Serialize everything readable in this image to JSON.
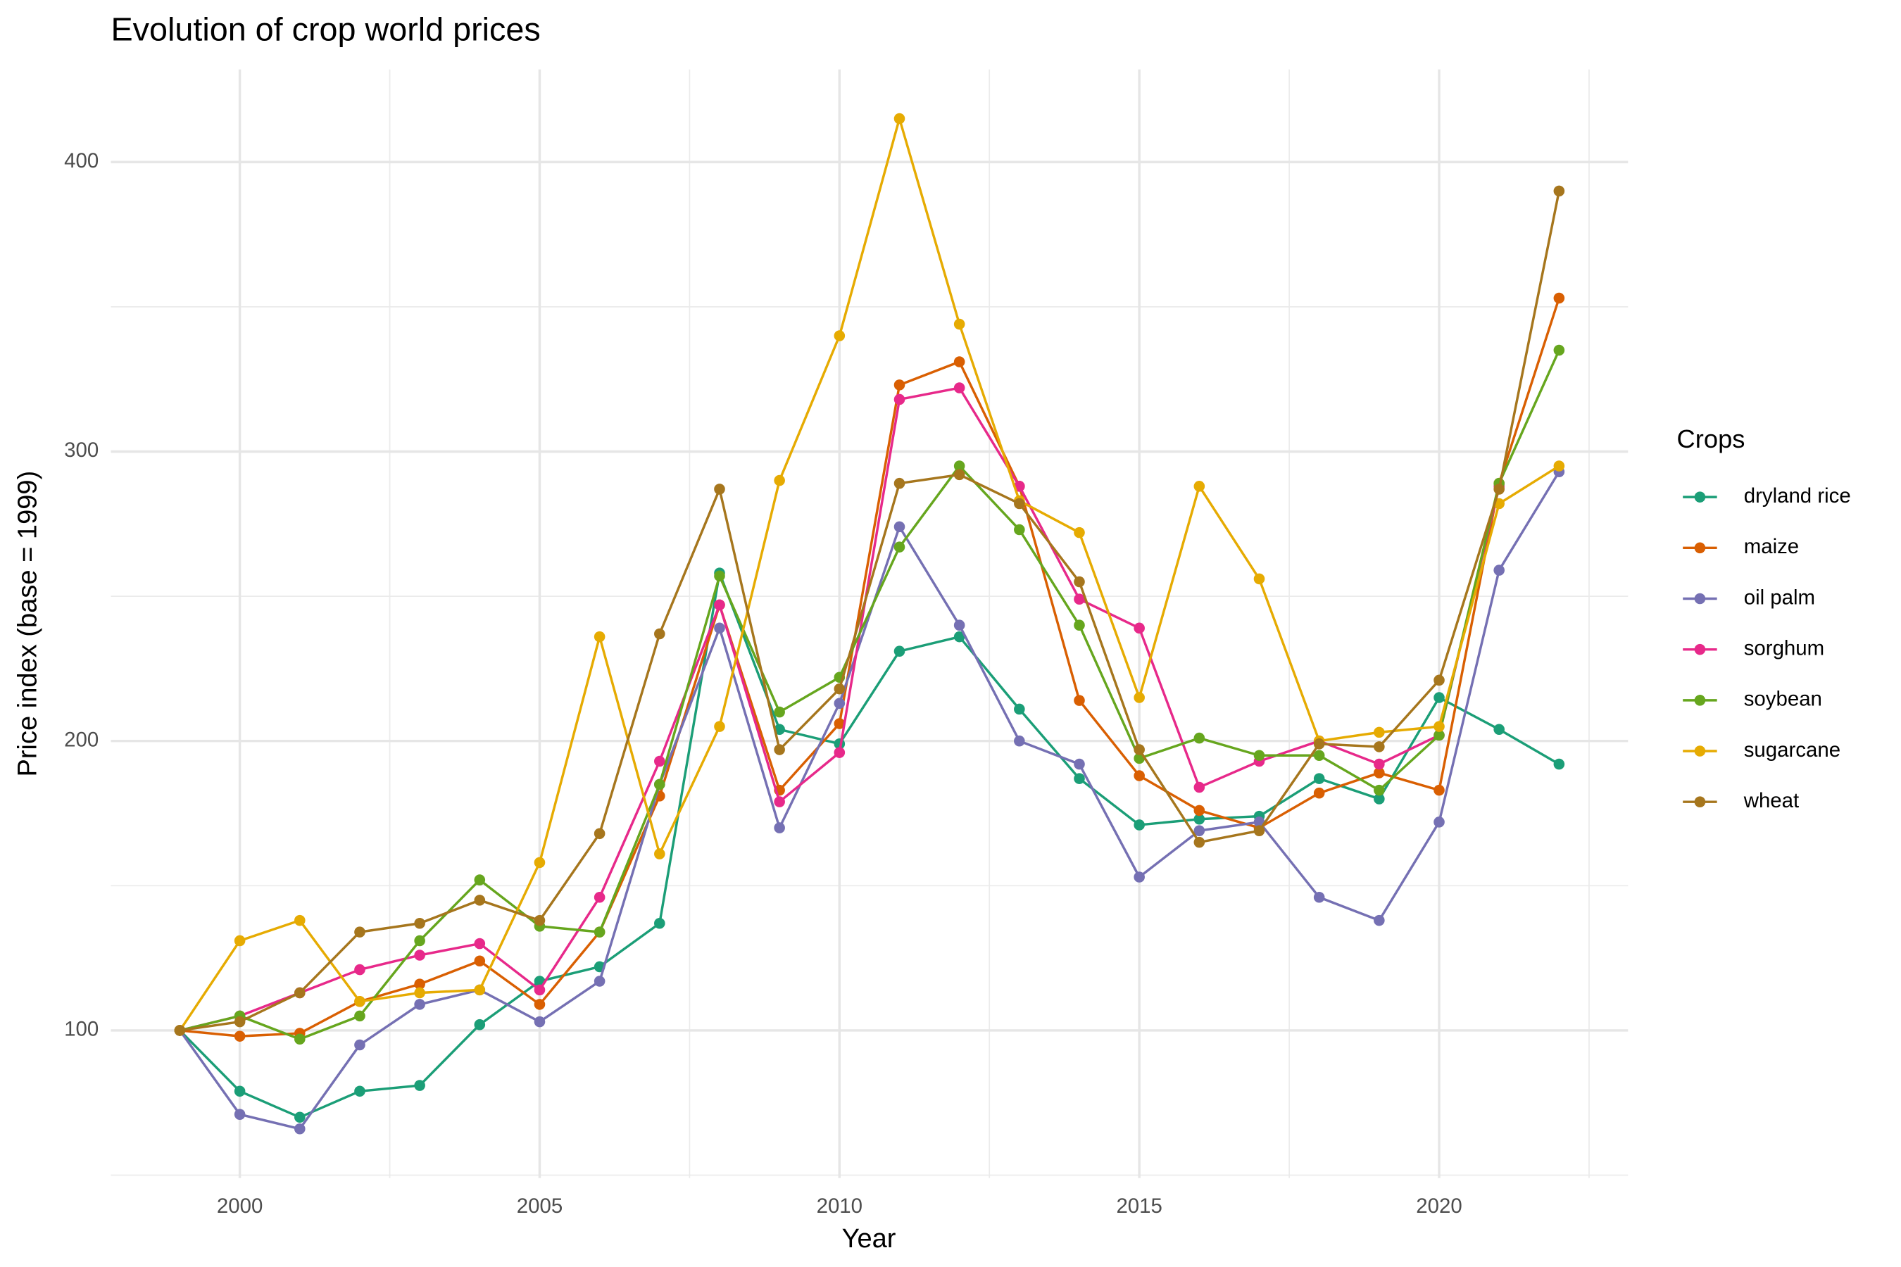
{
  "chart_data": {
    "type": "line",
    "title": "Evolution of crop world prices",
    "x_label": "Year",
    "y_label": "Price index (base = 1999)",
    "legend_title": "Crops",
    "legend_position": "right",
    "grid": true,
    "x": [
      1999,
      2000,
      2001,
      2002,
      2003,
      2004,
      2005,
      2006,
      2007,
      2008,
      2009,
      2010,
      2011,
      2012,
      2013,
      2014,
      2015,
      2016,
      2017,
      2018,
      2019,
      2020,
      2021,
      2022
    ],
    "xlim": [
      1997.85,
      2023.15
    ],
    "xticks": [
      2000,
      2005,
      2010,
      2015,
      2020
    ],
    "ylim": [
      49,
      432
    ],
    "yticks": [
      100,
      200,
      300,
      400
    ],
    "series": [
      {
        "name": "dryland rice",
        "color": "#1b9e77",
        "values": [
          100,
          79,
          70,
          79,
          81,
          102,
          117,
          122,
          137,
          258,
          204,
          199,
          231,
          236,
          211,
          187,
          171,
          173,
          174,
          187,
          180,
          215,
          204,
          192
        ]
      },
      {
        "name": "maize",
        "color": "#d95f02",
        "values": [
          100,
          98,
          99,
          110,
          116,
          124,
          109,
          134,
          181,
          247,
          183,
          206,
          323,
          331,
          288,
          214,
          188,
          176,
          170,
          182,
          189,
          183,
          289,
          353
        ]
      },
      {
        "name": "oil palm",
        "color": "#7570b3",
        "values": [
          100,
          71,
          66,
          95,
          109,
          114,
          103,
          117,
          185,
          239,
          170,
          213,
          274,
          240,
          200,
          192,
          153,
          169,
          172,
          146,
          138,
          172,
          259,
          293
        ]
      },
      {
        "name": "sorghum",
        "color": "#e7298a",
        "values": [
          100,
          105,
          113,
          121,
          126,
          130,
          114,
          146,
          193,
          247,
          179,
          196,
          318,
          322,
          288,
          249,
          239,
          184,
          193,
          200,
          192,
          202,
          288,
          null
        ]
      },
      {
        "name": "soybean",
        "color": "#66a61e",
        "values": [
          100,
          105,
          97,
          105,
          131,
          152,
          136,
          134,
          185,
          257,
          210,
          222,
          267,
          295,
          273,
          240,
          194,
          201,
          195,
          195,
          183,
          202,
          289,
          335
        ]
      },
      {
        "name": "sugarcane",
        "color": "#e6ab02",
        "values": [
          100,
          131,
          138,
          110,
          113,
          114,
          158,
          236,
          161,
          205,
          290,
          340,
          415,
          344,
          283,
          272,
          215,
          288,
          256,
          200,
          203,
          205,
          282,
          295
        ]
      },
      {
        "name": "wheat",
        "color": "#a6761d",
        "values": [
          100,
          103,
          113,
          134,
          137,
          145,
          138,
          168,
          237,
          287,
          197,
          218,
          289,
          292,
          282,
          255,
          197,
          165,
          169,
          199,
          198,
          221,
          287,
          390
        ]
      }
    ]
  }
}
